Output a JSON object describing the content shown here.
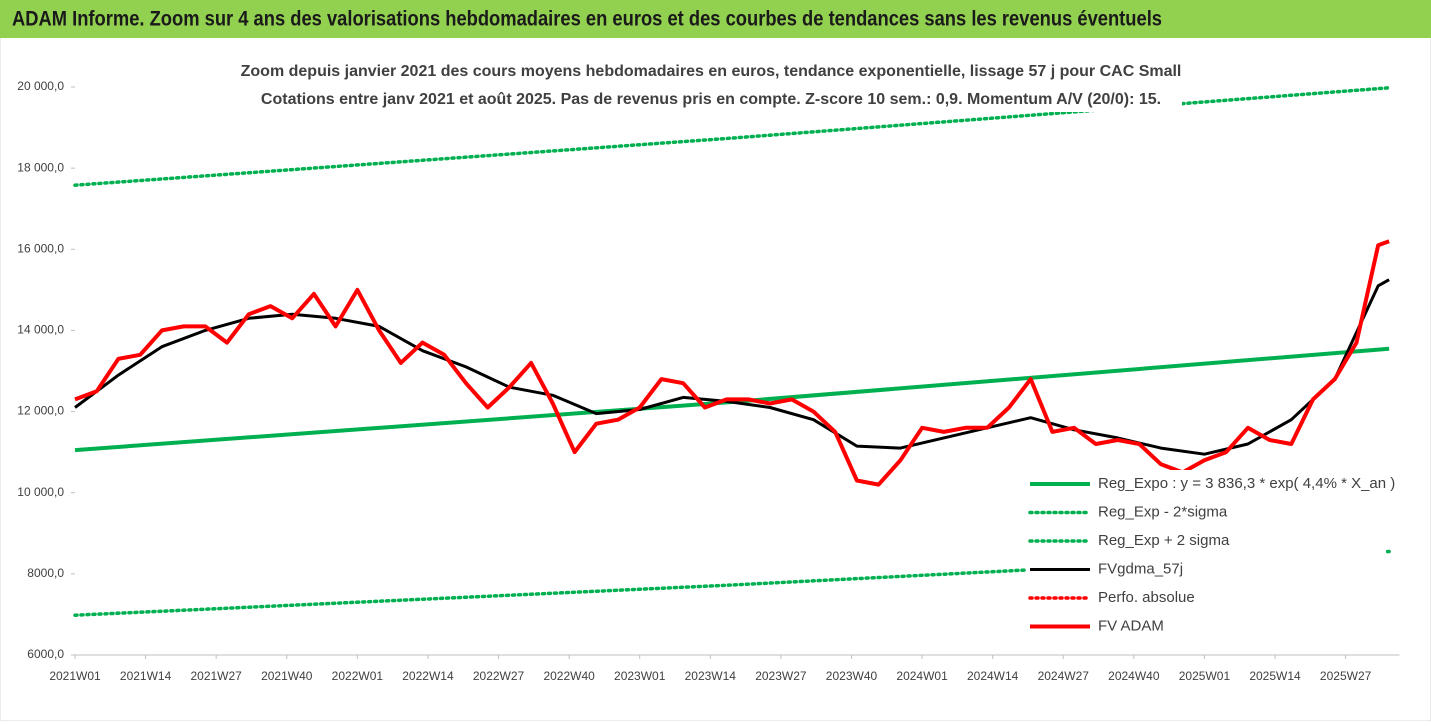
{
  "chart_data": {
    "type": "line",
    "title": "ADAM Informe. Zoom sur 4 ans des valorisations hebdomadaires en euros et des courbes de tendances sans les revenus éventuels",
    "subtitle": [
      "Zoom depuis janvier 2021 des cours moyens hebdomadaires en euros, tendance exponentielle, lissage 57 j pour CAC Small",
      "Cotations entre janv 2021 et août 2025. Pas de revenus pris en compte. Z-score 10 sem.: 0,9. Momentum A/V (20/0): 15."
    ],
    "xlim": [
      0,
      243
    ],
    "xticks": [
      {
        "value": 0,
        "label": "2021W01"
      },
      {
        "value": 13,
        "label": "2021W14"
      },
      {
        "value": 26,
        "label": "2021W27"
      },
      {
        "value": 39,
        "label": "2021W40"
      },
      {
        "value": 52,
        "label": "2022W01"
      },
      {
        "value": 65,
        "label": "2022W14"
      },
      {
        "value": 78,
        "label": "2022W27"
      },
      {
        "value": 91,
        "label": "2022W40"
      },
      {
        "value": 104,
        "label": "2023W01"
      },
      {
        "value": 117,
        "label": "2023W14"
      },
      {
        "value": 130,
        "label": "2023W27"
      },
      {
        "value": 143,
        "label": "2023W40"
      },
      {
        "value": 156,
        "label": "2024W01"
      },
      {
        "value": 169,
        "label": "2024W14"
      },
      {
        "value": 182,
        "label": "2024W27"
      },
      {
        "value": 195,
        "label": "2024W40"
      },
      {
        "value": 208,
        "label": "2025W01"
      },
      {
        "value": 221,
        "label": "2025W14"
      },
      {
        "value": 234,
        "label": "2025W27"
      }
    ],
    "ylim": [
      6000,
      20000
    ],
    "yticks": [
      {
        "value": 6000,
        "label": "6000,0"
      },
      {
        "value": 8000,
        "label": "8000,0"
      },
      {
        "value": 10000,
        "label": "10 000,0"
      },
      {
        "value": 12000,
        "label": "12 000,0"
      },
      {
        "value": 14000,
        "label": "14 000,0"
      },
      {
        "value": 16000,
        "label": "16 000,0"
      },
      {
        "value": 18000,
        "label": "18 000,0"
      },
      {
        "value": 20000,
        "label": "20 000,0"
      }
    ],
    "legend": "lower right",
    "series": [
      {
        "name": "Reg_Expo : y = 3 836,3 * exp( 4,4% *  X_an )",
        "color": "#00b050",
        "line_style": "solid",
        "x": [
          0,
          121,
          242
        ],
        "values": [
          11050,
          12236,
          13550
        ]
      },
      {
        "name": "Reg_Exp - 2*sigma",
        "color": "#00b050",
        "line_style": "dotted",
        "x": [
          0,
          121,
          242
        ],
        "values": [
          6980,
          7725,
          8550
        ]
      },
      {
        "name": "Reg_Exp + 2 sigma",
        "color": "#00b050",
        "line_style": "dotted",
        "x": [
          0,
          121,
          242
        ],
        "values": [
          17580,
          18741,
          19980
        ]
      },
      {
        "name": "FVgdma_57j",
        "color": "#000000",
        "line_style": "solid",
        "x": [
          0,
          8,
          16,
          24,
          32,
          40,
          48,
          56,
          64,
          72,
          80,
          88,
          96,
          104,
          112,
          120,
          128,
          136,
          144,
          152,
          160,
          168,
          176,
          184,
          192,
          200,
          208,
          216,
          224,
          232,
          240,
          242
        ],
        "values": [
          12100,
          12900,
          13600,
          14000,
          14300,
          14400,
          14300,
          14100,
          13500,
          13100,
          12600,
          12400,
          11950,
          12050,
          12350,
          12250,
          12100,
          11800,
          11150,
          11100,
          11350,
          11600,
          11850,
          11550,
          11350,
          11100,
          10950,
          11200,
          11800,
          12800,
          15100,
          15250
        ]
      },
      {
        "name": "Perfo. absolue",
        "color": "#ff0000",
        "line_style": "dotted",
        "x": [],
        "values": []
      },
      {
        "name": "FV ADAM",
        "color": "#ff0000",
        "line_style": "solid",
        "x": [
          0,
          4,
          8,
          12,
          16,
          20,
          24,
          28,
          32,
          36,
          40,
          44,
          48,
          52,
          56,
          60,
          64,
          68,
          72,
          76,
          80,
          84,
          88,
          92,
          96,
          100,
          104,
          108,
          112,
          116,
          120,
          124,
          128,
          132,
          136,
          140,
          144,
          148,
          152,
          156,
          160,
          164,
          168,
          172,
          176,
          180,
          184,
          188,
          192,
          196,
          200,
          204,
          208,
          212,
          216,
          220,
          224,
          228,
          232,
          236,
          240,
          242
        ],
        "values": [
          12300,
          12500,
          13300,
          13400,
          14000,
          14100,
          14100,
          13700,
          14400,
          14600,
          14300,
          14900,
          14100,
          15000,
          14000,
          13200,
          13700,
          13400,
          12700,
          12100,
          12600,
          13200,
          12200,
          11000,
          11700,
          11800,
          12100,
          12800,
          12700,
          12100,
          12300,
          12300,
          12200,
          12300,
          12000,
          11500,
          10300,
          10200,
          10800,
          11600,
          11500,
          11600,
          11600,
          12100,
          12800,
          11500,
          11600,
          11200,
          11300,
          11200,
          10700,
          10500,
          10800,
          11000,
          11600,
          11300,
          11200,
          12300,
          12800,
          13700,
          16100,
          16200
        ]
      }
    ]
  }
}
